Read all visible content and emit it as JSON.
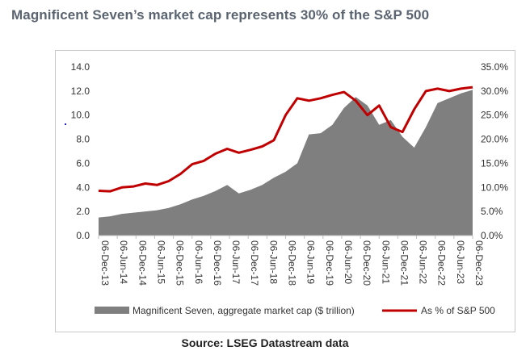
{
  "title": "Magnificent Seven’s market cap represents 30% of the S&P 500",
  "source": "Source: LSEG Datastream data",
  "chart_data": {
    "type": "area",
    "title": "Magnificent Seven’s market cap represents 30% of the S&P 500",
    "xlabel": "",
    "ylabel": "",
    "ylim": [
      0,
      14
    ],
    "y2lim": [
      0,
      0.35
    ],
    "y_ticks": [
      "0.0",
      "2.0",
      "4.0",
      "6.0",
      "8.0",
      "10.0",
      "12.0",
      "14.0"
    ],
    "y2_ticks": [
      "0.0%",
      "5.0%",
      "10.0%",
      "15.0%",
      "20.0%",
      "25.0%",
      "30.0%",
      "35.0%"
    ],
    "x_ticks": [
      "06-Dec-13",
      "06-Jun-14",
      "06-Dec-14",
      "06-Jun-15",
      "06-Dec-15",
      "06-Jun-16",
      "06-Dec-16",
      "06-Jun-17",
      "06-Dec-17",
      "06-Jun-18",
      "06-Dec-18",
      "06-Jun-19",
      "06-Dec-19",
      "06-Jun-20",
      "06-Dec-20",
      "06-Jun-21",
      "06-Dec-21",
      "06-Jun-22",
      "06-Dec-22",
      "06-Jun-23",
      "06-Dec-23"
    ],
    "legend_position": "bottom",
    "grid": false,
    "series": [
      {
        "name": "Magnificent Seven, aggregate market cap ($ trillion)",
        "kind": "area",
        "axis": "left",
        "color": "#7f7f7f",
        "values": [
          1.5,
          1.6,
          1.8,
          1.9,
          2.0,
          2.1,
          2.3,
          2.6,
          3.0,
          3.3,
          3.7,
          4.2,
          3.5,
          3.8,
          4.2,
          4.8,
          5.3,
          6.0,
          8.4,
          8.5,
          9.2,
          10.6,
          11.5,
          10.8,
          9.2,
          9.6,
          8.2,
          7.3,
          9.0,
          11.0,
          11.4,
          11.8,
          12.1
        ]
      },
      {
        "name": "As % of S&P 500",
        "kind": "line",
        "axis": "right",
        "color": "#c00000",
        "values": [
          0.093,
          0.092,
          0.1,
          0.102,
          0.108,
          0.105,
          0.113,
          0.128,
          0.148,
          0.155,
          0.17,
          0.18,
          0.172,
          0.178,
          0.185,
          0.198,
          0.25,
          0.285,
          0.28,
          0.285,
          0.292,
          0.298,
          0.28,
          0.25,
          0.27,
          0.225,
          0.215,
          0.262,
          0.3,
          0.305,
          0.3,
          0.305,
          0.308
        ]
      }
    ]
  }
}
